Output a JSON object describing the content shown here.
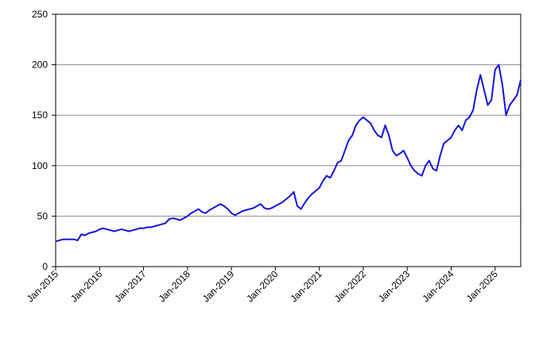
{
  "chart_data": {
    "type": "line",
    "x": [
      "2015-01",
      "2015-02",
      "2015-03",
      "2015-04",
      "2015-05",
      "2015-06",
      "2015-07",
      "2015-08",
      "2015-09",
      "2015-10",
      "2015-11",
      "2015-12",
      "2016-01",
      "2016-02",
      "2016-03",
      "2016-04",
      "2016-05",
      "2016-06",
      "2016-07",
      "2016-08",
      "2016-09",
      "2016-10",
      "2016-11",
      "2016-12",
      "2017-01",
      "2017-02",
      "2017-03",
      "2017-04",
      "2017-05",
      "2017-06",
      "2017-07",
      "2017-08",
      "2017-09",
      "2017-10",
      "2017-11",
      "2017-12",
      "2018-01",
      "2018-02",
      "2018-03",
      "2018-04",
      "2018-05",
      "2018-06",
      "2018-07",
      "2018-08",
      "2018-09",
      "2018-10",
      "2018-11",
      "2018-12",
      "2019-01",
      "2019-02",
      "2019-03",
      "2019-04",
      "2019-05",
      "2019-06",
      "2019-07",
      "2019-08",
      "2019-09",
      "2019-10",
      "2019-11",
      "2019-12",
      "2020-01",
      "2020-02",
      "2020-03",
      "2020-04",
      "2020-05",
      "2020-06",
      "2020-07",
      "2020-08",
      "2020-09",
      "2020-10",
      "2020-11",
      "2020-12",
      "2021-01",
      "2021-02",
      "2021-03",
      "2021-04",
      "2021-05",
      "2021-06",
      "2021-07",
      "2021-08",
      "2021-09",
      "2021-10",
      "2021-11",
      "2021-12",
      "2022-01",
      "2022-02",
      "2022-03",
      "2022-04",
      "2022-05",
      "2022-06",
      "2022-07",
      "2022-08",
      "2022-09",
      "2022-10",
      "2022-11",
      "2022-12",
      "2023-01",
      "2023-02",
      "2023-03",
      "2023-04",
      "2023-05",
      "2023-06",
      "2023-07",
      "2023-08",
      "2023-09",
      "2023-10",
      "2023-11",
      "2023-12",
      "2024-01",
      "2024-02",
      "2024-03",
      "2024-04",
      "2024-05",
      "2024-06",
      "2024-07",
      "2024-08",
      "2024-09",
      "2024-10",
      "2024-11",
      "2024-12",
      "2025-01",
      "2025-02",
      "2025-03",
      "2025-04",
      "2025-05",
      "2025-06",
      "2025-07",
      "2025-08"
    ],
    "series": [
      {
        "color": "#1414dc",
        "values": [
          25,
          26,
          27,
          27,
          27,
          27,
          26,
          32,
          31,
          33,
          34,
          35,
          37,
          38,
          37,
          36,
          35,
          36,
          37,
          36,
          35,
          36,
          37,
          38,
          38,
          39,
          39,
          40,
          41,
          42,
          43,
          47,
          48,
          47,
          46,
          48,
          50,
          53,
          55,
          57,
          54,
          53,
          56,
          58,
          60,
          62,
          60,
          57,
          53,
          51,
          53,
          55,
          56,
          57,
          58,
          60,
          62,
          58,
          57,
          58,
          60,
          62,
          64,
          67,
          70,
          74,
          60,
          57,
          63,
          68,
          72,
          75,
          78,
          85,
          90,
          88,
          95,
          103,
          105,
          115,
          125,
          130,
          140,
          145,
          148,
          145,
          142,
          135,
          130,
          128,
          140,
          130,
          115,
          110,
          112,
          115,
          108,
          100,
          95,
          92,
          90,
          100,
          105,
          97,
          95,
          110,
          122,
          125,
          128,
          135,
          140,
          135,
          145,
          148,
          155,
          175,
          190,
          175,
          160,
          165,
          195,
          200,
          180,
          150,
          160,
          165,
          170,
          185
        ]
      }
    ],
    "xlim": [
      "2015-01",
      "2025-08"
    ],
    "xticks": [
      {
        "value": "2015-01",
        "label": "Jan-2015"
      },
      {
        "value": "2016-01",
        "label": "Jan-2016"
      },
      {
        "value": "2017-01",
        "label": "Jan-2017"
      },
      {
        "value": "2018-01",
        "label": "Jan-2018"
      },
      {
        "value": "2019-01",
        "label": "Jan-2019"
      },
      {
        "value": "2020-01",
        "label": "Jan-2020"
      },
      {
        "value": "2021-01",
        "label": "Jan-2021"
      },
      {
        "value": "2022-01",
        "label": "Jan-2022"
      },
      {
        "value": "2023-01",
        "label": "Jan-2023"
      },
      {
        "value": "2024-01",
        "label": "Jan-2024"
      },
      {
        "value": "2025-01",
        "label": "Jan-2025"
      }
    ],
    "ylim": [
      0,
      250
    ],
    "yticks": [
      0,
      50,
      100,
      150,
      200,
      250
    ],
    "grid": true
  }
}
